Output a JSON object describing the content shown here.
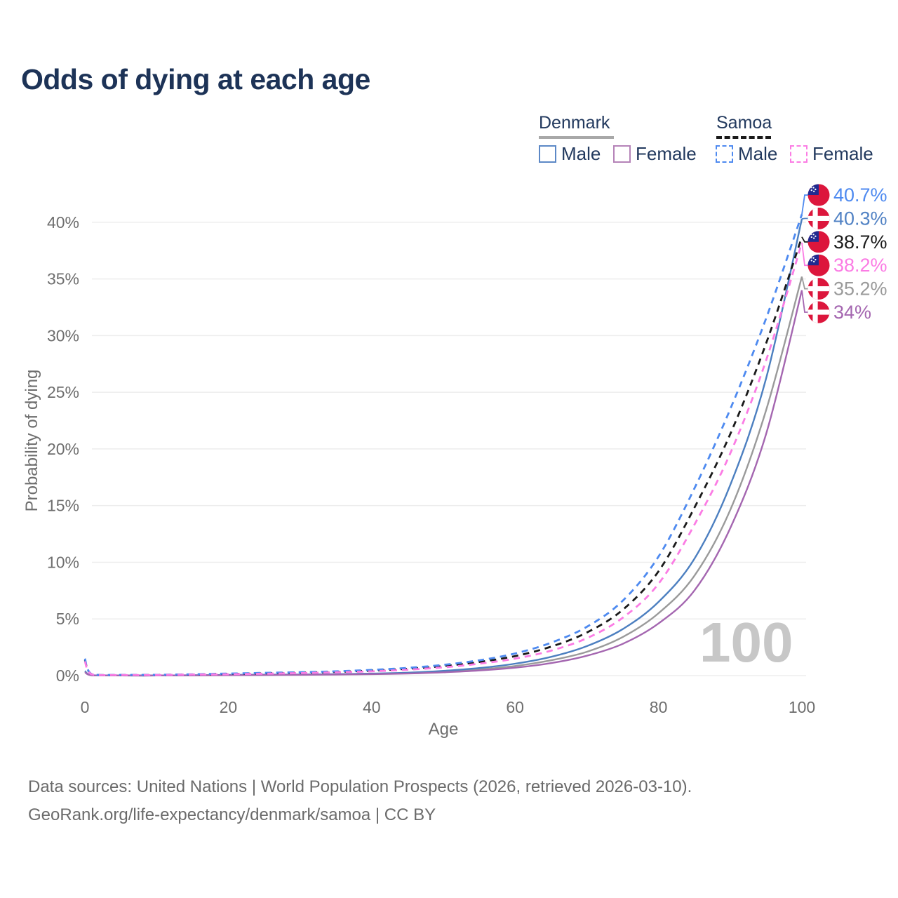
{
  "title": "Odds of dying at each age",
  "legend": {
    "groups": [
      {
        "label": "Denmark",
        "line_style": "solid",
        "line_color": "#a8a8a8",
        "items": [
          {
            "label": "Male",
            "color": "#5c88c6",
            "style": "solid"
          },
          {
            "label": "Female",
            "color": "#b583b8",
            "style": "solid"
          }
        ]
      },
      {
        "label": "Samoa",
        "line_style": "dashed",
        "line_color": "#1a1a1a",
        "items": [
          {
            "label": "Male",
            "color": "#4e8af0",
            "style": "dashed"
          },
          {
            "label": "Female",
            "color": "#fb7ce4",
            "style": "dashed"
          }
        ]
      }
    ]
  },
  "axes": {
    "x": {
      "label": "Age",
      "ticks": [
        "0",
        "20",
        "40",
        "60",
        "80",
        "100"
      ],
      "range": [
        0,
        100
      ]
    },
    "y": {
      "label": "Probability of dying",
      "ticks": [
        "0%",
        "5%",
        "10%",
        "15%",
        "20%",
        "25%",
        "30%",
        "35%",
        "40%"
      ],
      "range_pct": [
        0,
        42
      ]
    }
  },
  "watermark": "100",
  "footer": {
    "line1": "Data sources: United Nations | World Population Prospects (2026, retrieved 2026-03-10).",
    "line2": "GeoRank.org/life-expectancy/denmark/samoa | CC BY"
  },
  "end_labels": [
    {
      "text": "40.7%",
      "color": "#4e8af0",
      "flag": "samoa",
      "series_id": "samoa_male"
    },
    {
      "text": "40.3%",
      "color": "#5182c4",
      "flag": "denmark",
      "series_id": "denmark_male"
    },
    {
      "text": "38.7%",
      "color": "#1a1a1a",
      "flag": "samoa",
      "series_id": "samoa_all"
    },
    {
      "text": "38.2%",
      "color": "#fb7ce4",
      "flag": "samoa",
      "series_id": "samoa_female"
    },
    {
      "text": "35.2%",
      "color": "#9a9a9a",
      "flag": "denmark",
      "series_id": "denmark_all"
    },
    {
      "text": "34%",
      "color": "#a466b0",
      "flag": "denmark",
      "series_id": "denmark_female"
    }
  ],
  "chart_data": {
    "type": "line",
    "title": "Odds of dying at each age",
    "xlabel": "Age",
    "ylabel": "Probability of dying",
    "xlim": [
      0,
      100
    ],
    "ylim_pct": [
      0,
      42
    ],
    "grid": "horizontal",
    "legend_position": "top-right",
    "unit": "%",
    "x_ages": [
      0,
      1,
      5,
      10,
      15,
      20,
      25,
      30,
      35,
      40,
      45,
      50,
      55,
      60,
      65,
      70,
      75,
      80,
      85,
      90,
      95,
      100
    ],
    "series": [
      {
        "id": "denmark_all",
        "name": "Denmark — Both sexes",
        "country": "Denmark",
        "sex": "all",
        "color": "#9a9a9a",
        "dash": false,
        "end_value_label": "35.2%",
        "values": [
          0.35,
          0.025,
          0.01,
          0.01,
          0.025,
          0.045,
          0.06,
          0.08,
          0.11,
          0.15,
          0.22,
          0.35,
          0.55,
          0.85,
          1.35,
          2.1,
          3.4,
          5.5,
          8.8,
          14.6,
          23.4,
          35.2
        ]
      },
      {
        "id": "denmark_male",
        "name": "Denmark — Male",
        "country": "Denmark",
        "sex": "male",
        "color": "#4c7fc0",
        "dash": false,
        "end_value_label": "40.3%",
        "values": [
          0.4,
          0.03,
          0.01,
          0.012,
          0.03,
          0.06,
          0.08,
          0.1,
          0.13,
          0.18,
          0.26,
          0.42,
          0.67,
          1.05,
          1.65,
          2.6,
          4.1,
          6.5,
          10.3,
          16.8,
          26.2,
          40.3
        ]
      },
      {
        "id": "denmark_female",
        "name": "Denmark — Female",
        "country": "Denmark",
        "sex": "female",
        "color": "#a466b0",
        "dash": false,
        "end_value_label": "34%",
        "values": [
          0.3,
          0.02,
          0.01,
          0.01,
          0.02,
          0.035,
          0.05,
          0.065,
          0.09,
          0.13,
          0.18,
          0.29,
          0.45,
          0.7,
          1.1,
          1.75,
          2.8,
          4.6,
          7.5,
          13.0,
          21.3,
          34.0
        ]
      },
      {
        "id": "samoa_all",
        "name": "Samoa — Both sexes",
        "country": "Samoa",
        "sex": "all",
        "color": "#1a1a1a",
        "dash": true,
        "end_value_label": "38.7%",
        "values": [
          1.4,
          0.11,
          0.05,
          0.06,
          0.1,
          0.15,
          0.2,
          0.26,
          0.33,
          0.44,
          0.6,
          0.84,
          1.2,
          1.72,
          2.55,
          3.8,
          5.8,
          9.2,
          14.8,
          21.3,
          29.3,
          38.7
        ]
      },
      {
        "id": "samoa_male",
        "name": "Samoa — Male",
        "country": "Samoa",
        "sex": "male",
        "color": "#4e8af0",
        "dash": true,
        "end_value_label": "40.7%",
        "values": [
          1.5,
          0.12,
          0.06,
          0.07,
          0.12,
          0.18,
          0.24,
          0.3,
          0.38,
          0.5,
          0.68,
          0.95,
          1.35,
          1.95,
          2.9,
          4.3,
          6.6,
          10.5,
          16.5,
          23.5,
          31.5,
          40.7
        ]
      },
      {
        "id": "samoa_female",
        "name": "Samoa — Female",
        "country": "Samoa",
        "sex": "female",
        "color": "#fb7ce4",
        "dash": true,
        "end_value_label": "38.2%",
        "values": [
          1.25,
          0.1,
          0.05,
          0.05,
          0.09,
          0.12,
          0.17,
          0.22,
          0.29,
          0.38,
          0.52,
          0.73,
          1.05,
          1.5,
          2.2,
          3.3,
          5.1,
          8.1,
          13.3,
          19.6,
          27.8,
          38.2
        ]
      }
    ]
  }
}
